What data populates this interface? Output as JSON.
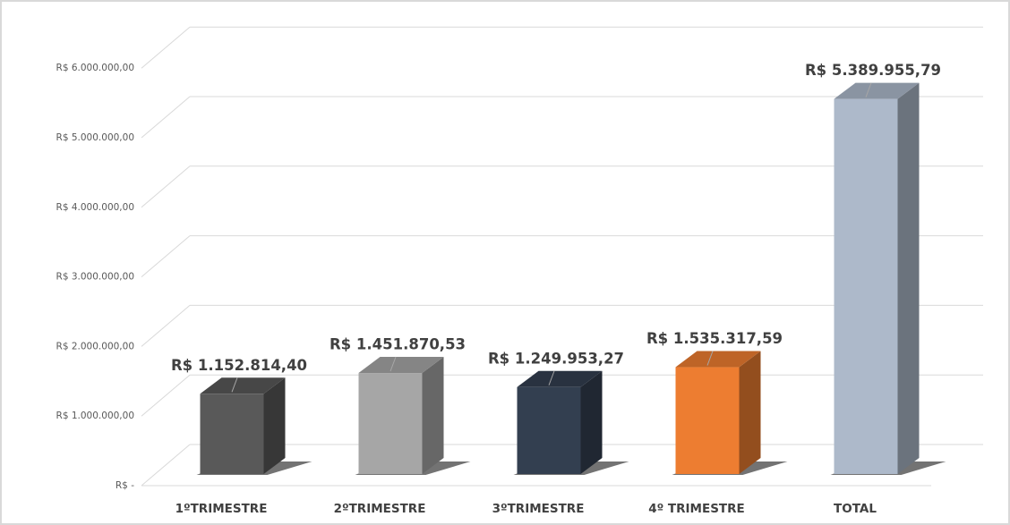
{
  "chart_data": {
    "type": "bar3d",
    "categories": [
      "1ºTRIMESTRE",
      "2ºTRIMESTRE",
      "3ºTRIMESTRE",
      "4º TRIMESTRE",
      "TOTAL"
    ],
    "values": [
      1152814.4,
      1451870.53,
      1249953.27,
      1535317.59,
      5389955.79
    ],
    "value_labels": [
      "R$ 1.152.814,40",
      "R$ 1.451.870,53",
      "R$ 1.249.953,27",
      "R$ 1.535.317,59",
      "R$ 5.389.955,79"
    ],
    "colors": [
      "#595959",
      "#a6a6a6",
      "#333f50",
      "#ed7d31",
      "#adb9ca"
    ],
    "ylim": [
      0,
      6000000
    ],
    "yticks": [
      {
        "value": 0,
        "label": "R$ -"
      },
      {
        "value": 1000000,
        "label": "R$ 1.000.000,00"
      },
      {
        "value": 2000000,
        "label": "R$ 2.000.000,00"
      },
      {
        "value": 3000000,
        "label": "R$ 3.000.000,00"
      },
      {
        "value": 4000000,
        "label": "R$ 4.000.000,00"
      },
      {
        "value": 5000000,
        "label": "R$ 5.000.000,00"
      },
      {
        "value": 6000000,
        "label": "R$ 6.000.000,00"
      }
    ],
    "grid": true
  }
}
